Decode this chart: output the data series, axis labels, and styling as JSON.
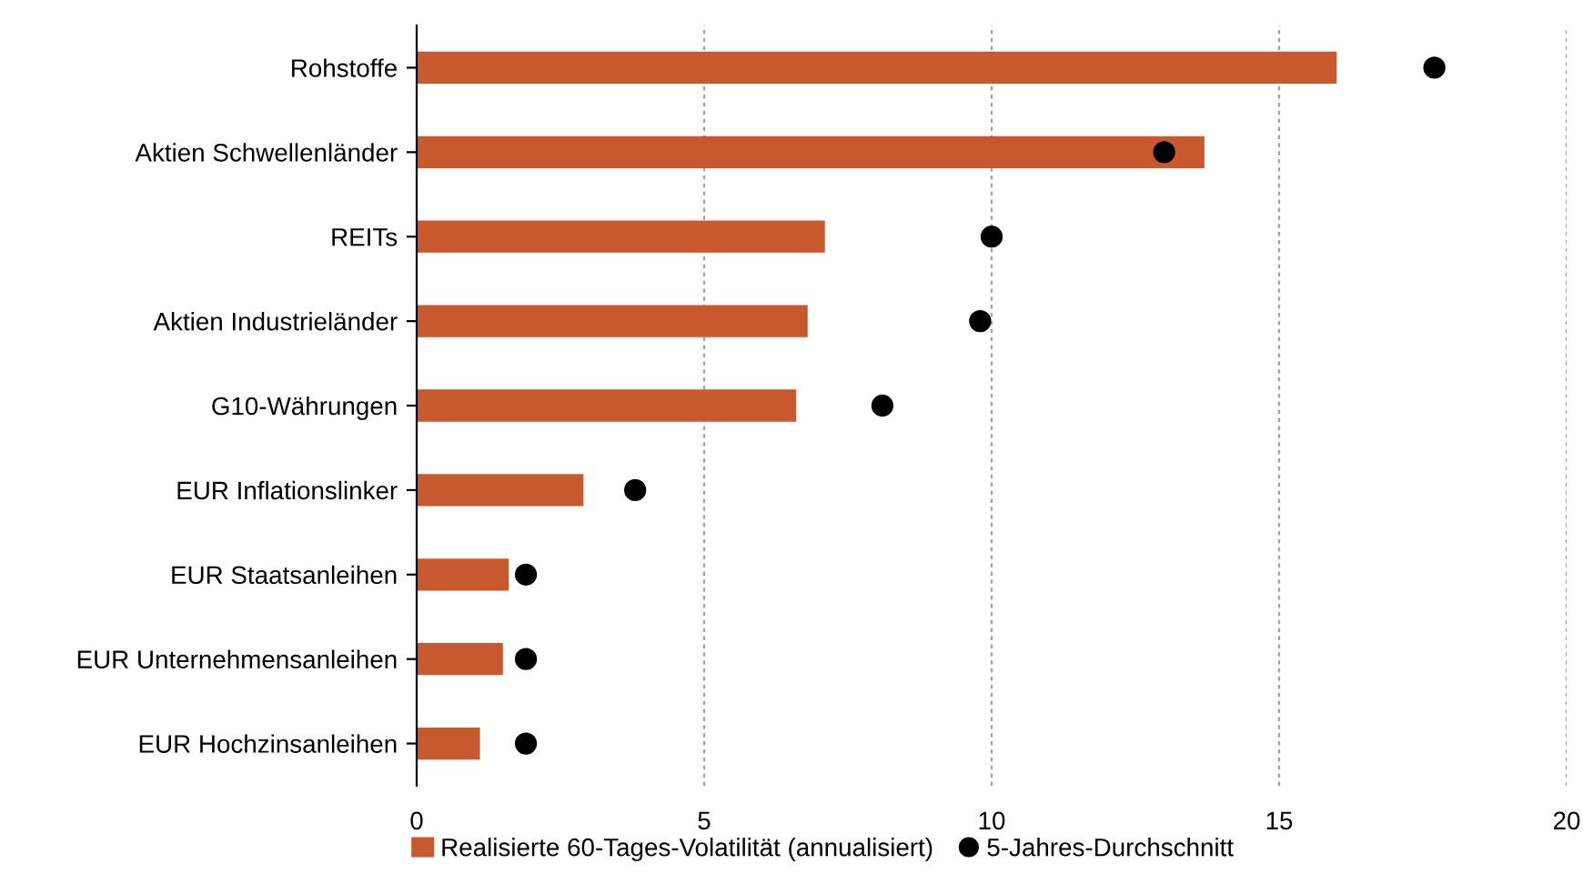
{
  "chart_data": {
    "type": "bar",
    "orientation": "horizontal",
    "categories": [
      "Rohstoffe",
      "Aktien Schwellenländer",
      "REITs",
      "Aktien Industrieländer",
      "G10-Währungen",
      "EUR Inflationslinker",
      "EUR Staatsanleihen",
      "EUR Unternehmensanleihen",
      "EUR Hochzinsanleihen"
    ],
    "series": [
      {
        "name": "Realisierte 60-Tages-Volatilität (annualisiert)",
        "color": "#c8582e",
        "values": [
          16.0,
          13.7,
          7.1,
          6.8,
          6.6,
          2.9,
          1.6,
          1.5,
          1.1
        ]
      },
      {
        "name": "5-Jahres-Durchschnitt",
        "color": "#000000",
        "type": "scatter",
        "marker": "circle",
        "values": [
          17.7,
          13.0,
          10.0,
          9.8,
          8.1,
          3.8,
          1.9,
          1.9,
          1.9
        ]
      }
    ],
    "xlim": [
      0,
      20
    ],
    "xticks": [
      0,
      5,
      10,
      15,
      20
    ],
    "grid": "x",
    "legend": "bottom"
  }
}
